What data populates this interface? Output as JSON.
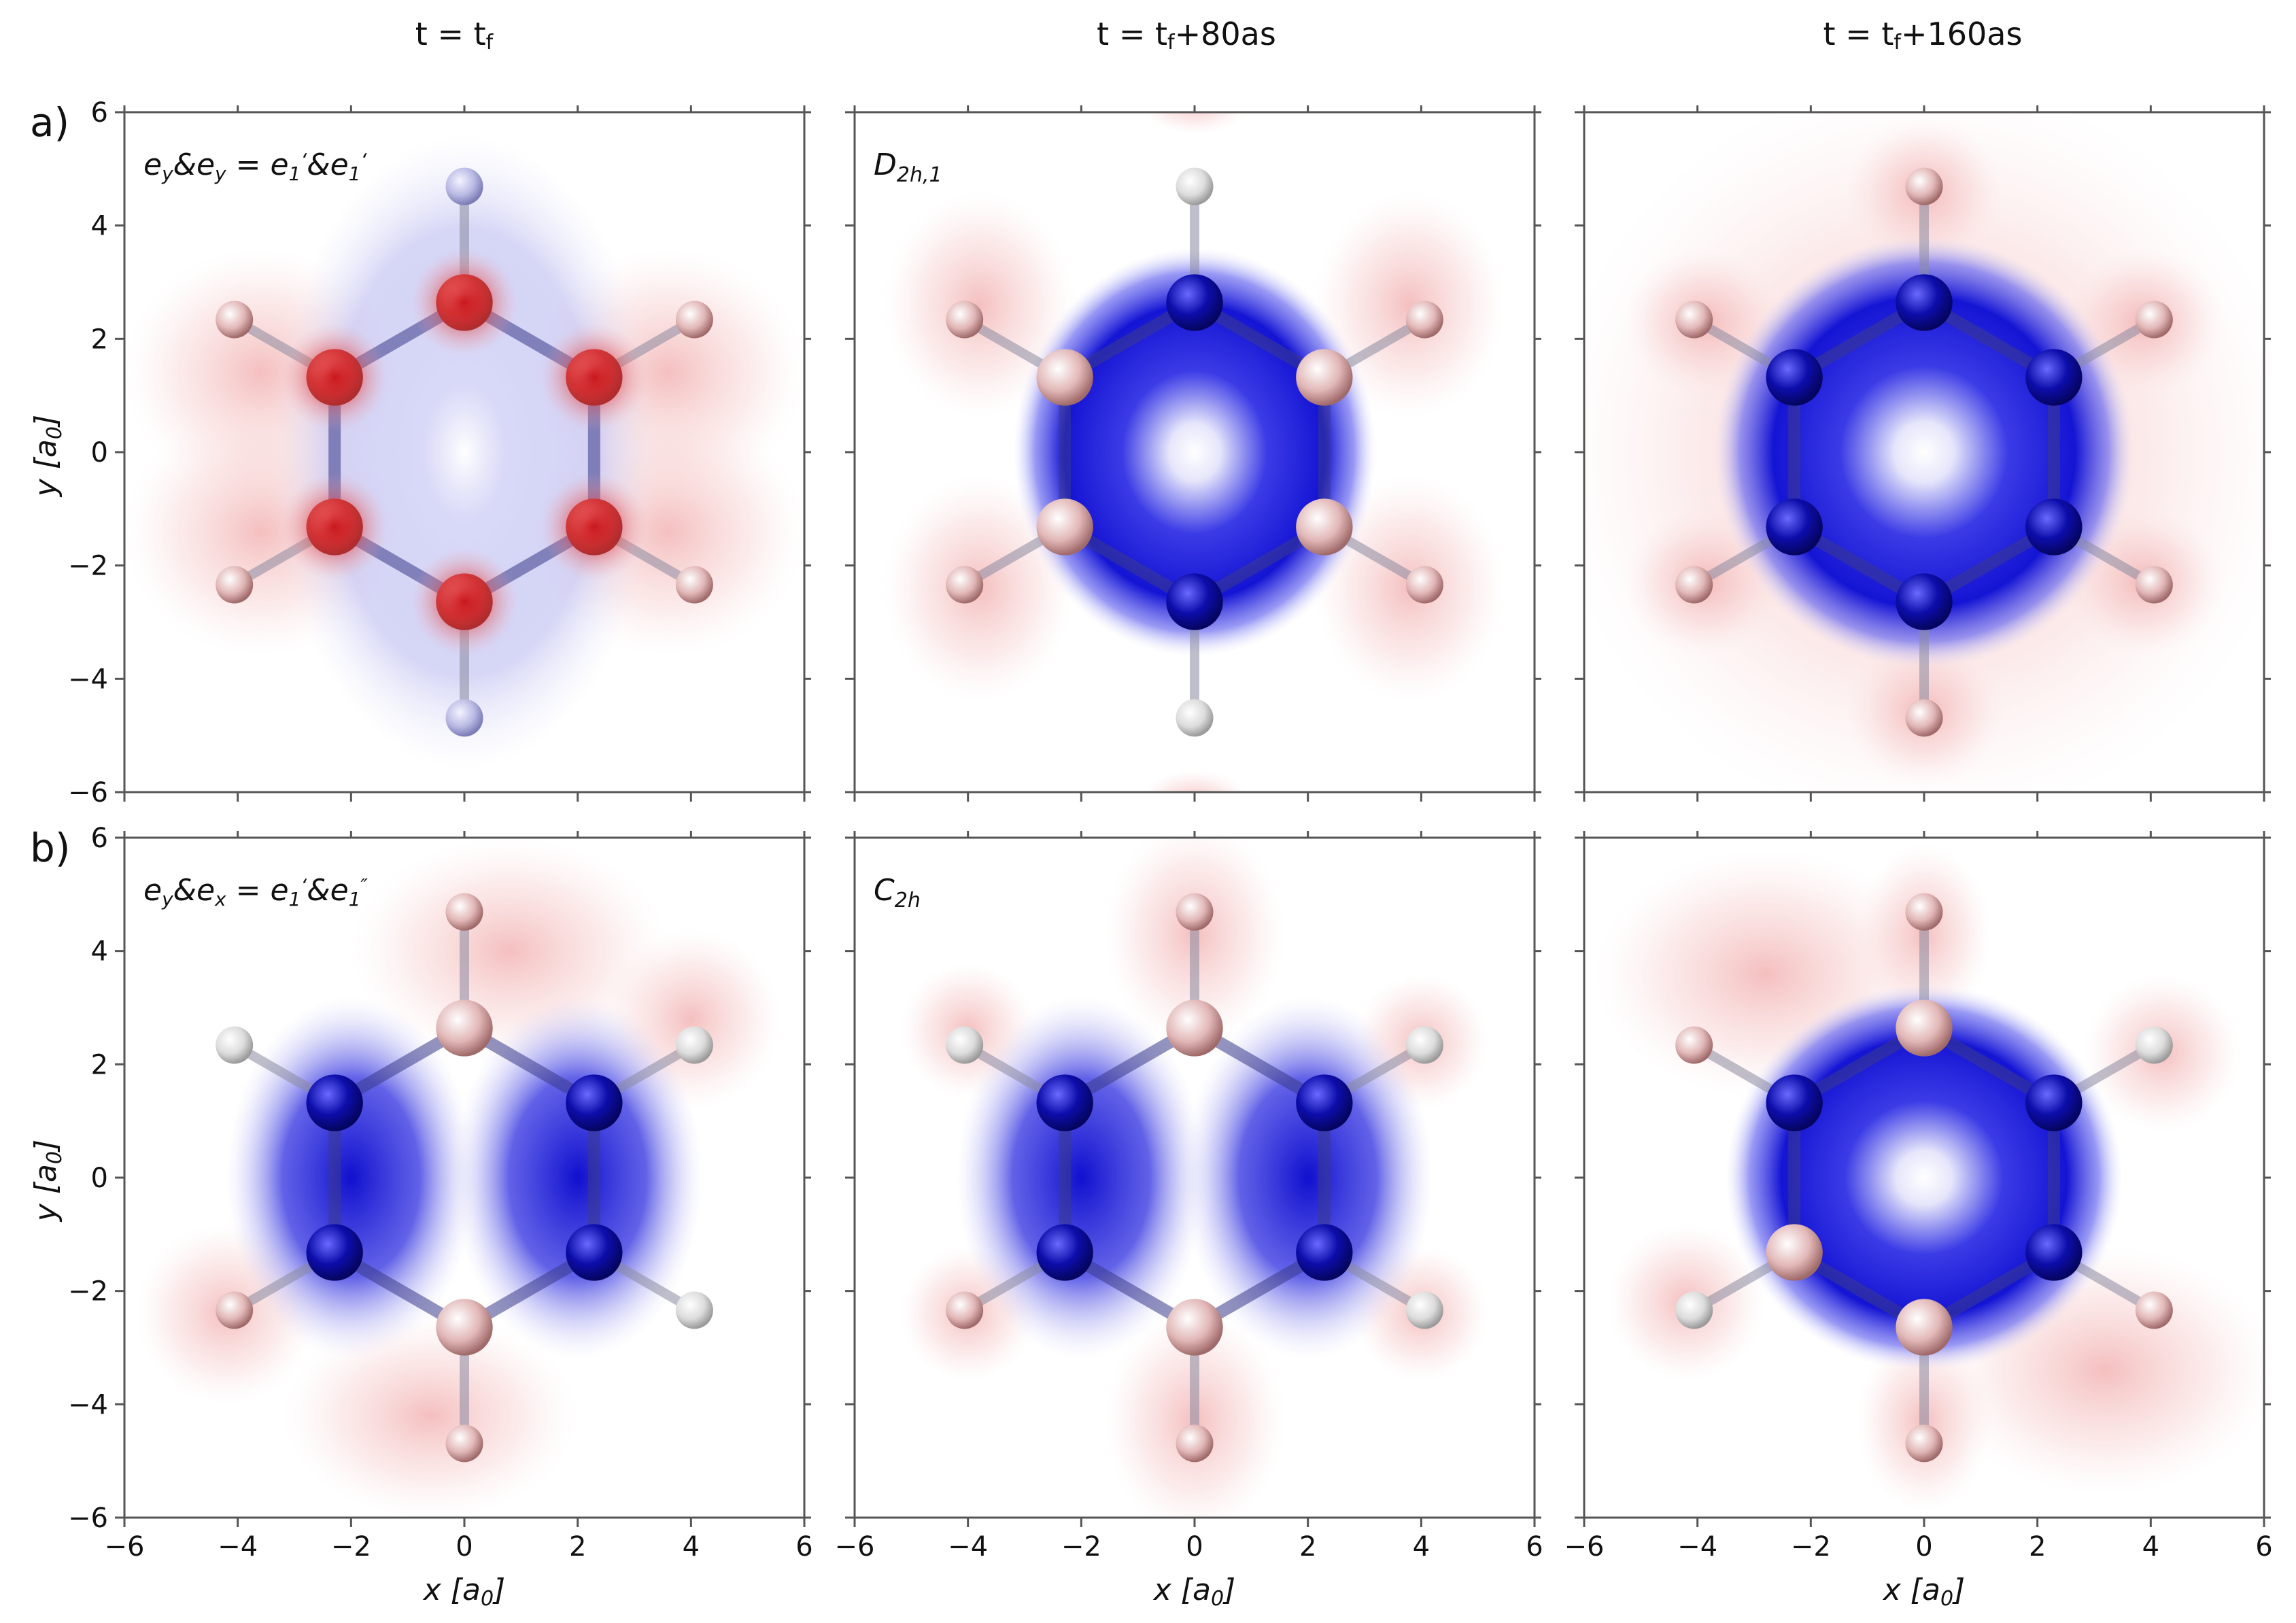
{
  "figure": {
    "column_titles": [
      "t = t",
      "t = t",
      "t = t"
    ],
    "column_title_subscripts": [
      "f",
      "f",
      "f"
    ],
    "column_title_suffixes": [
      "",
      "+80as",
      "+160as"
    ],
    "row_labels": [
      "a)",
      "b)"
    ],
    "panel_labels": [
      [
        "e",
        "y",
        "&e",
        "y",
        " = e",
        "1",
        "‘",
        "&e",
        "1",
        "‘"
      ],
      [
        "D",
        "2h,1"
      ],
      [],
      [
        "e",
        "y",
        "&e",
        "x",
        " = e",
        "1",
        "‘",
        "&e",
        "1",
        "″"
      ],
      [
        "C",
        "2h"
      ],
      []
    ],
    "xlabel": {
      "text": "x [a",
      "sub": "0",
      "close": "]"
    },
    "ylabel": {
      "text": "y [a",
      "sub": "0",
      "close": "]"
    },
    "colors": {
      "positive": "#cc1f1f",
      "negative": "#1a1adb",
      "carbon_a0": "#c41c1c",
      "carbon_other": "#0d0dab",
      "hydrogen": "#dcdcdc"
    }
  },
  "chart_data": {
    "type": "heatmap",
    "description_kind": "density-difference contour maps of benzene, 2 rows x 3 columns",
    "xlim": [
      -6,
      6
    ],
    "ylim": [
      -6,
      6
    ],
    "xticks": [
      -6,
      -4,
      -2,
      0,
      2,
      4,
      6
    ],
    "yticks": [
      -6,
      -4,
      -2,
      0,
      2,
      4,
      6
    ],
    "xtick_labels": [
      "−6",
      "−4",
      "−2",
      "0",
      "2",
      "4",
      "6"
    ],
    "ytick_labels": [
      "−6",
      "−4",
      "−2",
      "0",
      "2",
      "4",
      "6"
    ],
    "atoms": {
      "carbon": [
        [
          0,
          2.64
        ],
        [
          2.29,
          1.32
        ],
        [
          2.29,
          -1.32
        ],
        [
          0,
          -2.64
        ],
        [
          -2.29,
          -1.32
        ],
        [
          -2.29,
          1.32
        ]
      ],
      "hydrogen": [
        [
          0,
          4.69
        ],
        [
          4.06,
          2.34
        ],
        [
          4.06,
          -2.34
        ],
        [
          0,
          -4.69
        ],
        [
          -4.06,
          -2.34
        ],
        [
          -4.06,
          2.34
        ]
      ]
    },
    "panels": [
      {
        "row": "a",
        "column": 1
      },
      {
        "row": "a",
        "column": 2
      },
      {
        "row": "a",
        "column": 3
      },
      {
        "row": "b",
        "column": 1
      },
      {
        "row": "b",
        "column": 2
      },
      {
        "row": "b",
        "column": 3
      }
    ]
  }
}
